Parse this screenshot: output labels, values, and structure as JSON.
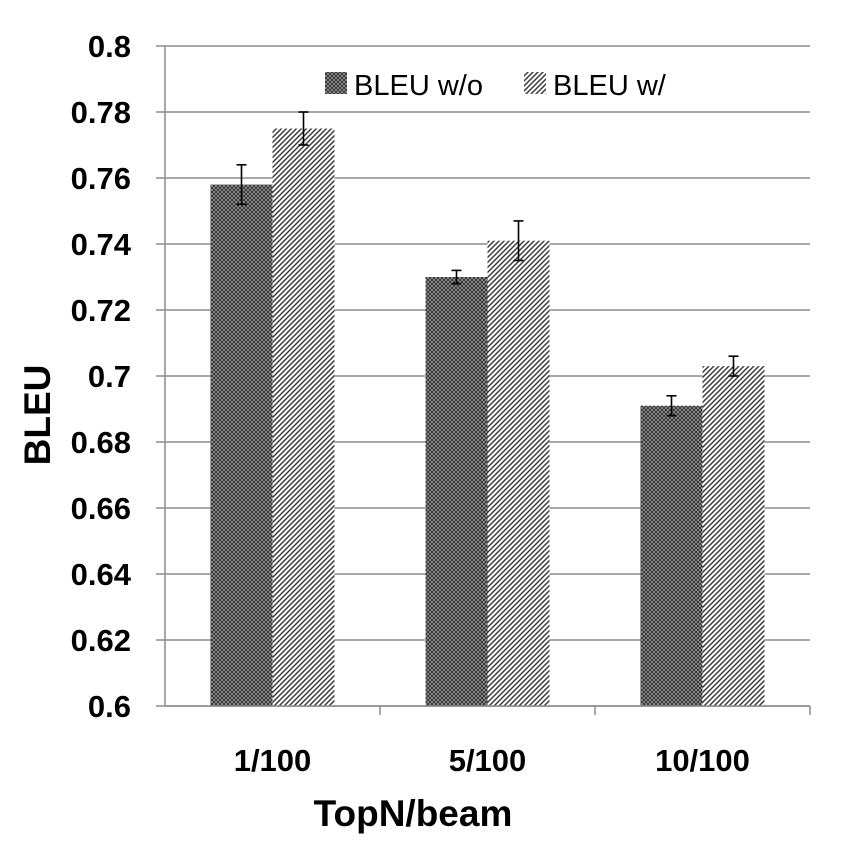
{
  "chart_data": {
    "type": "bar",
    "title": "",
    "xlabel": "TopN/beam",
    "ylabel": "BLEU",
    "ylim": [
      0.6,
      0.8
    ],
    "yticks": [
      "0.6",
      "0.62",
      "0.64",
      "0.66",
      "0.68",
      "0.7",
      "0.72",
      "0.74",
      "0.76",
      "0.78",
      "0.8"
    ],
    "categories": [
      "1/100",
      "5/100",
      "10/100"
    ],
    "grid": true,
    "legend_position": "top-right",
    "series": [
      {
        "name": "BLEU w/o",
        "pattern": "dense-crosshatch",
        "color": "#555555",
        "values": [
          0.758,
          0.73,
          0.691
        ],
        "error": [
          0.006,
          0.002,
          0.003
        ]
      },
      {
        "name": "BLEU w/",
        "pattern": "diagonal-stripes",
        "color": "#555555",
        "values": [
          0.775,
          0.741,
          0.703
        ],
        "error": [
          0.005,
          0.006,
          0.003
        ]
      }
    ]
  }
}
